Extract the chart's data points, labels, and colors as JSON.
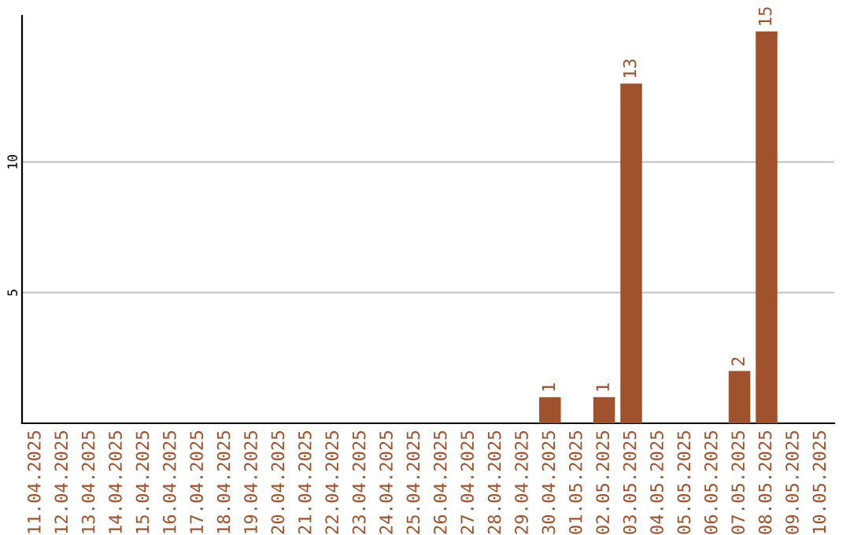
{
  "chart_data": {
    "type": "bar",
    "categories": [
      "11.04.2025",
      "12.04.2025",
      "13.04.2025",
      "14.04.2025",
      "15.04.2025",
      "16.04.2025",
      "17.04.2025",
      "18.04.2025",
      "19.04.2025",
      "20.04.2025",
      "21.04.2025",
      "22.04.2025",
      "23.04.2025",
      "24.04.2025",
      "25.04.2025",
      "26.04.2025",
      "27.04.2025",
      "28.04.2025",
      "29.04.2025",
      "30.04.2025",
      "01.05.2025",
      "02.05.2025",
      "03.05.2025",
      "04.05.2025",
      "05.05.2025",
      "06.05.2025",
      "07.05.2025",
      "08.05.2025",
      "09.05.2025",
      "10.05.2025"
    ],
    "values": [
      0,
      0,
      0,
      0,
      0,
      0,
      0,
      0,
      0,
      0,
      0,
      0,
      0,
      0,
      0,
      0,
      0,
      0,
      0,
      1,
      0,
      1,
      13,
      0,
      0,
      0,
      2,
      15,
      0,
      0
    ],
    "value_labels": [
      null,
      null,
      null,
      null,
      null,
      null,
      null,
      null,
      null,
      null,
      null,
      null,
      null,
      null,
      null,
      null,
      null,
      null,
      null,
      "1",
      null,
      "1",
      "13",
      null,
      null,
      null,
      "2",
      "15",
      null,
      null
    ],
    "color": "#a0522d",
    "ylim": [
      0,
      15.6
    ],
    "yticks": [
      5,
      10
    ],
    "grid": "y",
    "legend": false
  }
}
